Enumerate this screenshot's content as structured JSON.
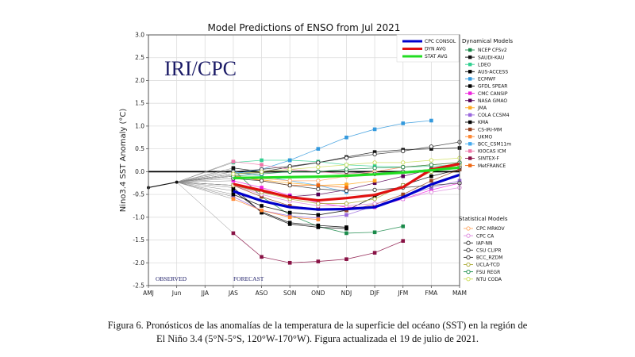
{
  "figure": {
    "caption_line1": "Figura 6. Pronósticos de las anomalías de la temperatura de la superficie del océano (SST) en la región de",
    "caption_line2": "El Niño 3.4 (5°N-5°S, 120°W-170°W). Figura actualizada el 19 de julio de 2021."
  },
  "chart_data": {
    "type": "line",
    "title": "Model Predictions of ENSO from Jul 2021",
    "xlabel": "",
    "ylabel": "Nino3.4 SST Anomaly (°C)",
    "watermark": "IRI/CPC",
    "annotations": [
      "OBSERVED",
      "FORECAST"
    ],
    "categories": [
      "AMJ",
      "Jun",
      "JJA",
      "JAS",
      "ASO",
      "SON",
      "OND",
      "NDJ",
      "DJF",
      "JFM",
      "FMA",
      "MAM"
    ],
    "ylim": [
      -2.5,
      3.0
    ],
    "yticks": [
      "3.0",
      "2.5",
      "2.0",
      "1.5",
      "1.0",
      "0.5",
      "0.0",
      "-0.5",
      "-1.0",
      "-1.5",
      "-2.0",
      "-2.5"
    ],
    "ytick_values": [
      3.0,
      2.5,
      2.0,
      1.5,
      1.0,
      0.5,
      0.0,
      -0.5,
      -1.0,
      -1.5,
      -2.0,
      -2.5
    ],
    "grid": true,
    "observed": {
      "name": "Observed",
      "color": "#111111",
      "values": [
        -0.35,
        -0.23
      ]
    },
    "summary_legend_title": "",
    "summary_series": [
      {
        "name": "CPC CONSOL",
        "color": "#0000cc",
        "values": [
          -0.43,
          -0.64,
          -0.78,
          -0.83,
          -0.82,
          -0.78,
          -0.56,
          -0.28,
          -0.07
        ]
      },
      {
        "name": "DYN AVG",
        "color": "#e01010",
        "values": [
          -0.27,
          -0.41,
          -0.56,
          -0.63,
          -0.58,
          -0.51,
          -0.34,
          0.05,
          0.17
        ]
      },
      {
        "name": "STAT AVG",
        "color": "#22dd22",
        "values": [
          -0.14,
          -0.13,
          -0.12,
          -0.11,
          -0.09,
          -0.06,
          -0.02,
          0.03,
          0.09
        ]
      }
    ],
    "dynamical_legend_title": "Dynamical Models",
    "dynamical_models": [
      {
        "name": "NCEP CFSv2",
        "color": "#1a8a4a",
        "values": [
          0.05,
          -0.55,
          -0.95,
          -1.2,
          -1.35,
          -1.33,
          -1.2,
          null,
          null
        ]
      },
      {
        "name": "SAUDI-KAU",
        "color": "#111111",
        "values": [
          0.08,
          0.0,
          0.1,
          0.2,
          0.32,
          0.43,
          0.48,
          0.5,
          0.52
        ]
      },
      {
        "name": "LDEO",
        "color": "#30d090",
        "values": [
          0.2,
          0.25,
          0.25,
          0.22,
          0.15,
          0.12,
          0.1,
          0.12,
          0.15
        ]
      },
      {
        "name": "AUS-ACCESS",
        "color": "#000000",
        "values": [
          -0.35,
          -0.9,
          -1.15,
          -1.22,
          -1.25,
          null,
          null,
          null,
          null
        ]
      },
      {
        "name": "ECMWF",
        "color": "#3399dd",
        "values": [
          -0.05,
          0.05,
          0.25,
          0.5,
          0.75,
          0.93,
          1.06,
          1.12,
          null
        ]
      },
      {
        "name": "GFDL SPEAR",
        "color": "#000000",
        "values": [
          -0.42,
          -0.88,
          -1.12,
          -1.18,
          -1.22,
          null,
          null,
          null,
          null
        ]
      },
      {
        "name": "CMC CANSIP",
        "color": "#ee22dd",
        "values": [
          -0.2,
          -0.35,
          -0.52,
          -0.68,
          -0.78,
          -0.78,
          -0.6,
          -0.4,
          -0.25
        ]
      },
      {
        "name": "NASA GMAO",
        "color": "#550055",
        "values": [
          -0.3,
          -0.45,
          -0.55,
          -0.5,
          -0.4,
          -0.25,
          -0.1,
          0.05,
          0.15
        ]
      },
      {
        "name": "JMA",
        "color": "#ffaa22",
        "values": [
          -0.1,
          -0.18,
          -0.25,
          -0.3,
          -0.28,
          -0.2,
          null,
          null,
          null
        ]
      },
      {
        "name": "COLA CCSM4",
        "color": "#9966dd",
        "values": [
          -0.55,
          -0.85,
          -0.97,
          -1.02,
          -0.95,
          -0.75,
          -0.55,
          -0.35,
          -0.2
        ]
      },
      {
        "name": "KMA",
        "color": "#000000",
        "values": [
          -0.5,
          -0.75,
          -0.9,
          -0.95,
          -0.85,
          -0.55,
          -0.3,
          -0.1,
          0.05
        ]
      },
      {
        "name": "CS-IRI-MM",
        "color": "#994422",
        "values": [
          -0.3,
          -0.55,
          -0.75,
          -0.82,
          -0.85,
          -0.72,
          -0.5,
          -0.2,
          0.05
        ]
      },
      {
        "name": "UKMO",
        "color": "#ff8833",
        "values": [
          -0.6,
          -0.85,
          -1.0,
          -1.05,
          null,
          null,
          null,
          null,
          null
        ]
      },
      {
        "name": "BCC_CSM11m",
        "color": "#44aaee",
        "values": [
          0.0,
          -0.1,
          -0.2,
          -0.3,
          -0.45,
          null,
          null,
          null,
          null
        ]
      },
      {
        "name": "KIOCAS ICM",
        "color": "#ee77aa",
        "values": [
          0.22,
          0.15,
          0.05,
          0.0,
          -0.05,
          0.0,
          0.1,
          0.15,
          0.2
        ]
      },
      {
        "name": "SINTEX-F",
        "color": "#881144",
        "values": [
          -1.35,
          -1.87,
          -2.0,
          -1.97,
          -1.92,
          -1.78,
          -1.52,
          null,
          null
        ]
      },
      {
        "name": "MetFRANCE",
        "color": "#ee6611",
        "values": [
          -0.08,
          -0.2,
          -0.3,
          -0.3,
          -0.35,
          null,
          null,
          null,
          null
        ]
      }
    ],
    "statistical_legend_title": "Statistical Models",
    "statistical_models": [
      {
        "name": "CPC MRKOV",
        "color": "#ffaa66",
        "values": [
          -0.1,
          -0.15,
          -0.2,
          -0.2,
          -0.1,
          0.0,
          0.1,
          0.15,
          0.2
        ]
      },
      {
        "name": "CPC CA",
        "color": "#dd88dd",
        "values": [
          -0.3,
          -0.5,
          -0.65,
          -0.75,
          -0.75,
          -0.7,
          -0.6,
          -0.45,
          -0.35
        ]
      },
      {
        "name": "IAP-NN",
        "color": "#333333",
        "values": [
          0.0,
          0.05,
          0.12,
          0.2,
          0.3,
          0.38,
          0.45,
          0.55,
          0.65
        ]
      },
      {
        "name": "CSU CLIPR",
        "color": "#333333",
        "values": [
          -0.15,
          -0.2,
          -0.3,
          -0.38,
          -0.42,
          -0.4,
          -0.35,
          -0.3,
          -0.25
        ]
      },
      {
        "name": "BCC_RZDM",
        "color": "#333333",
        "values": [
          -0.05,
          -0.02,
          0.0,
          0.0,
          0.0,
          -0.05,
          0.0,
          0.05,
          0.1
        ]
      },
      {
        "name": "UCLA-TCD",
        "color": "#aaaa33",
        "values": [
          -0.3,
          -0.45,
          -0.6,
          -0.7,
          -0.7,
          -0.6,
          -0.3,
          0.0,
          0.15
        ]
      },
      {
        "name": "FSU REGR",
        "color": "#118844",
        "values": [
          -0.1,
          -0.05,
          0.0,
          0.0,
          0.05,
          0.08,
          0.1,
          0.15,
          0.2
        ]
      },
      {
        "name": "NTU CODA",
        "color": "#ccdd55",
        "values": [
          -0.05,
          0.0,
          0.05,
          0.1,
          0.15,
          0.2,
          0.2,
          0.25,
          0.3
        ]
      }
    ]
  }
}
